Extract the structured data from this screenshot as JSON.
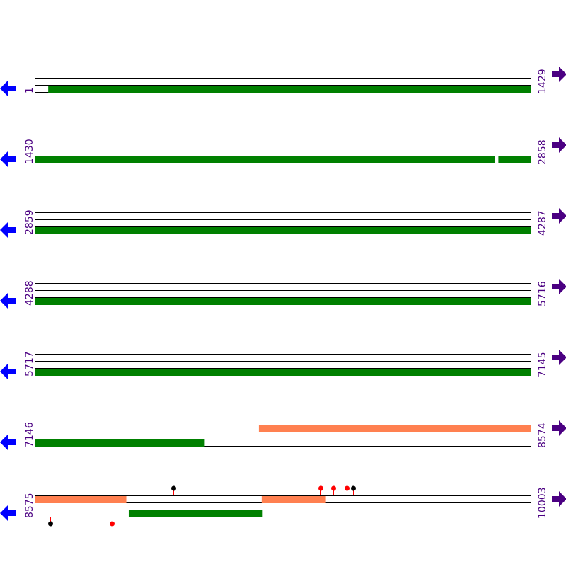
{
  "colors": {
    "cds": "#008000",
    "feature": "#ff8050",
    "label": "#4b0082",
    "left_arrow": "#0000ff",
    "right_arrow": "#4b0082",
    "site_red": "#ff0000",
    "site_black": "#000000"
  },
  "icons": {
    "left": "arrow-left-icon",
    "right": "arrow-right-icon"
  },
  "rows": [
    {
      "start": "1",
      "end": "1429",
      "s": 1,
      "e": 1429,
      "lanes": 4,
      "features": [
        {
          "lane": 2,
          "from": 38,
          "to": 1429,
          "kind": "cds"
        }
      ],
      "sites": []
    },
    {
      "start": "1430",
      "end": "2858",
      "s": 1430,
      "e": 2858,
      "lanes": 4,
      "features": [
        {
          "lane": 2,
          "from": 1430,
          "to": 2753,
          "kind": "cds"
        },
        {
          "lane": 2,
          "from": 2764,
          "to": 2858,
          "kind": "cds"
        }
      ],
      "sites": []
    },
    {
      "start": "2859",
      "end": "4287",
      "s": 2859,
      "e": 4287,
      "lanes": 4,
      "features": [
        {
          "lane": 2,
          "from": 2859,
          "to": 3825,
          "kind": "cds"
        },
        {
          "lane": 2,
          "from": 3827,
          "to": 4287,
          "kind": "cds"
        }
      ],
      "sites": []
    },
    {
      "start": "4288",
      "end": "5716",
      "s": 4288,
      "e": 5716,
      "lanes": 4,
      "features": [
        {
          "lane": 2,
          "from": 4288,
          "to": 5716,
          "kind": "cds"
        }
      ],
      "sites": []
    },
    {
      "start": "5717",
      "end": "7145",
      "s": 5717,
      "e": 7145,
      "lanes": 4,
      "features": [
        {
          "lane": 2,
          "from": 5717,
          "to": 7145,
          "kind": "cds"
        }
      ],
      "sites": []
    },
    {
      "start": "7146",
      "end": "8574",
      "s": 7146,
      "e": 8574,
      "lanes": 4,
      "features": [
        {
          "lane": 0,
          "from": 7790,
          "to": 8574,
          "kind": "feature"
        },
        {
          "lane": 2,
          "from": 7146,
          "to": 7633,
          "kind": "cds"
        }
      ],
      "sites": []
    },
    {
      "start": "8575",
      "end": "10003",
      "s": 8575,
      "e": 10003,
      "lanes": 4,
      "features": [
        {
          "lane": 0,
          "from": 8575,
          "to": 8836,
          "kind": "feature"
        },
        {
          "lane": 0,
          "from": 9227,
          "to": 9411,
          "kind": "feature"
        },
        {
          "lane": 2,
          "from": 8844,
          "to": 9229,
          "kind": "cds"
        }
      ],
      "sites": [
        {
          "pos": 8972,
          "side": "top",
          "color": "black"
        },
        {
          "pos": 9396,
          "side": "top",
          "color": "red"
        },
        {
          "pos": 9434,
          "side": "top",
          "color": "red"
        },
        {
          "pos": 9471,
          "side": "top",
          "color": "red"
        },
        {
          "pos": 9491,
          "side": "top",
          "color": "black"
        },
        {
          "pos": 8618,
          "side": "bottom",
          "color": "black"
        },
        {
          "pos": 8795,
          "side": "bottom",
          "color": "red"
        }
      ]
    }
  ]
}
